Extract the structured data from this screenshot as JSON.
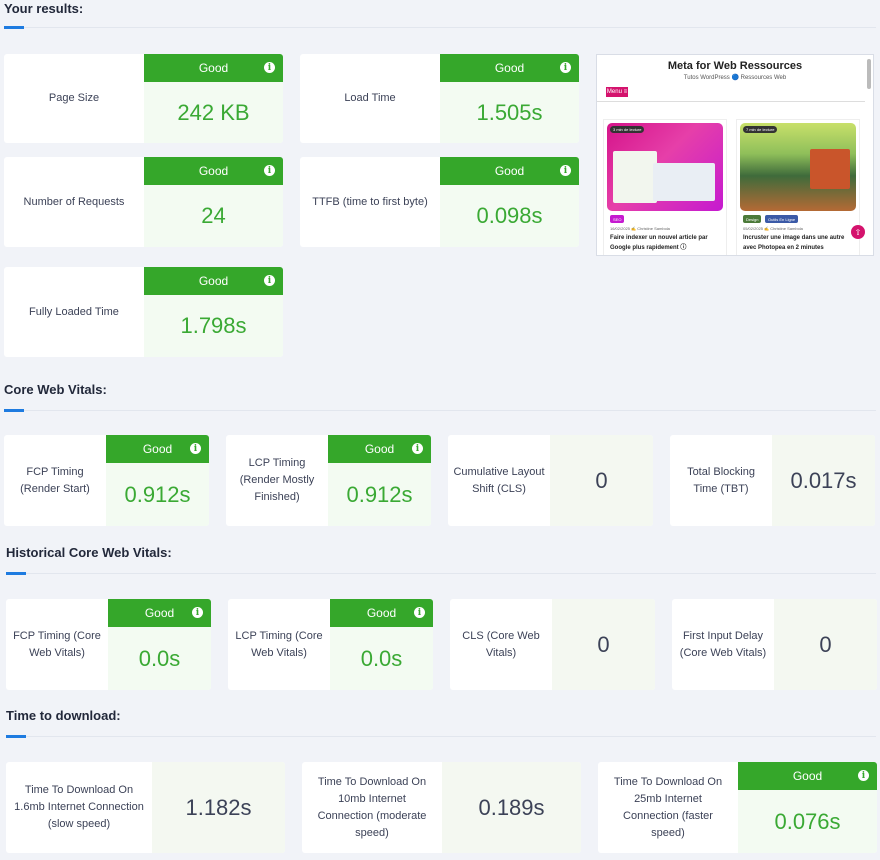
{
  "sections": {
    "results": "Your results:",
    "cwv": "Core Web Vitals:",
    "historical": "Historical Core Web Vitals:",
    "download": "Time to download:"
  },
  "badge_label": "Good",
  "info_icon": "info-icon",
  "results": {
    "page_size": {
      "label": "Page Size",
      "value": "242 KB"
    },
    "load_time": {
      "label": "Load Time",
      "value": "1.505s"
    },
    "requests": {
      "label": "Number of Requests",
      "value": "24"
    },
    "ttfb": {
      "label": "TTFB (time to first byte)",
      "value": "0.098s"
    },
    "fully_loaded": {
      "label": "Fully Loaded Time",
      "value": "1.798s"
    }
  },
  "cwv": {
    "fcp": {
      "label": "FCP Timing (Render Start)",
      "value": "0.912s"
    },
    "lcp": {
      "label": "LCP Timing (Render Mostly Finished)",
      "value": "0.912s"
    },
    "cls": {
      "label": "Cumulative Layout Shift (CLS)",
      "value": "0"
    },
    "tbt": {
      "label": "Total Blocking Time (TBT)",
      "value": "0.017s"
    }
  },
  "historical": {
    "fcp": {
      "label": "FCP Timing (Core Web Vitals)",
      "value": "0.0s"
    },
    "lcp": {
      "label": "LCP Timing (Core Web Vitals)",
      "value": "0.0s"
    },
    "cls": {
      "label": "CLS (Core Web Vitals)",
      "value": "0"
    },
    "fid": {
      "label": "First Input Delay (Core Web Vitals)",
      "value": "0"
    }
  },
  "download": {
    "slow": {
      "label": "Time To Download On 1.6mb Internet Connection (slow speed)",
      "value": "1.182s"
    },
    "moderate": {
      "label": "Time To Download On 10mb Internet Connection (moderate speed)",
      "value": "0.189s"
    },
    "fast": {
      "label": "Time To Download On 25mb Internet Connection (faster speed)",
      "value": "0.076s"
    }
  },
  "preview": {
    "title": "Meta for Web Ressources",
    "subtitle": "Tutos WordPress 🔵 Ressources Web",
    "menu": "Menu ≡",
    "post1": {
      "chip": "3 min de lecture",
      "tag": "SEO",
      "meta": "16/02/2025 ✍ Christine Sambola",
      "text": "Faire indexer un nouvel article par Google plus rapidement ⓘ"
    },
    "post2": {
      "chip": "7 min de lecture",
      "tag1": "Design",
      "tag2": "Outils En Ligne",
      "meta": "05/02/2025 ✍ Christine Sambola",
      "text": "Incruster une image dans une autre avec Photopea en 2 minutes"
    },
    "fab": "⇧"
  },
  "colors": {
    "good": "#35a72a",
    "value_green": "#3aa934",
    "accent": "#1e7be0",
    "preview_pink": "#d4136d"
  }
}
